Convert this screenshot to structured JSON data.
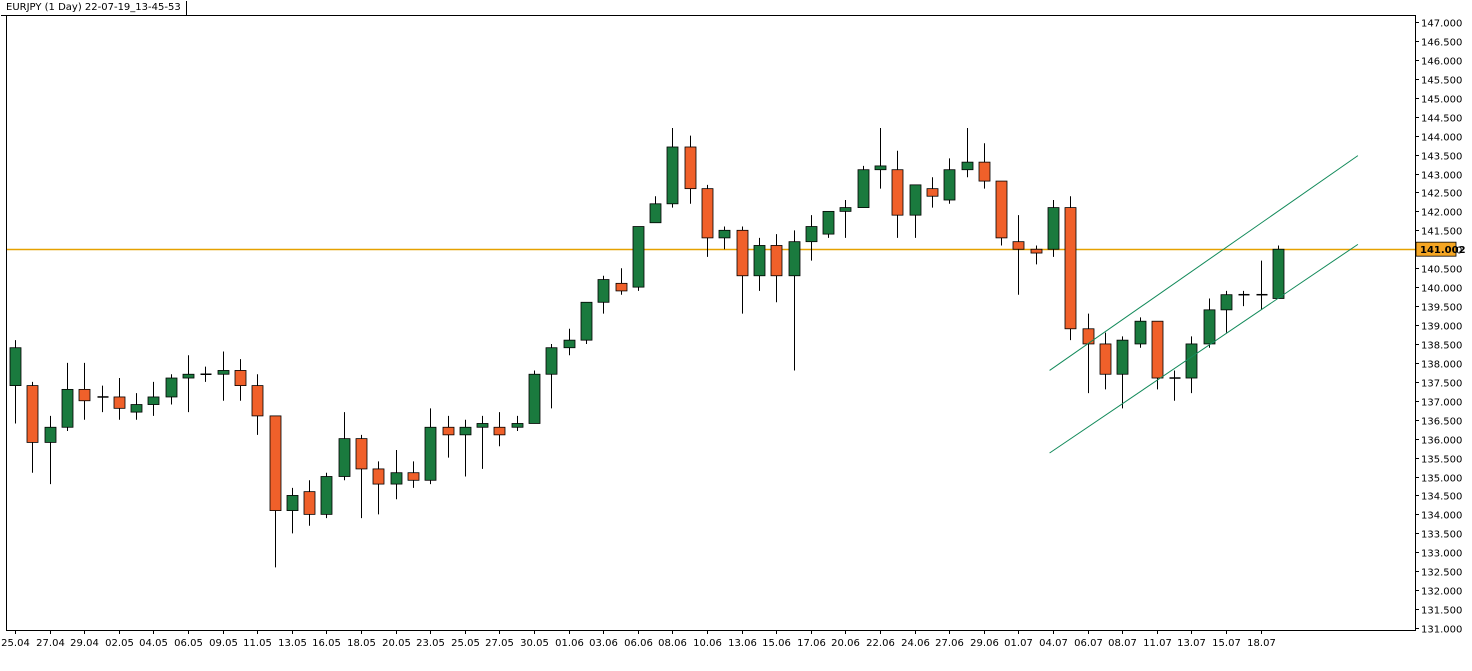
{
  "header": {
    "title": "EURJPY (1 Day) 22-07-19_13-45-53"
  },
  "colors": {
    "bull": "#1a7a3e",
    "bear": "#f0602a",
    "wick": "#000000",
    "level": "#e6a100",
    "channel": "#128a5a",
    "level_label_bg": "#f5a623"
  },
  "chart_data": {
    "type": "candlestick",
    "title": "EURJPY (1 Day) 22-07-19_13-45-53",
    "ylim": [
      131.0,
      147.0
    ],
    "y_ticks": [
      "147.000",
      "146.500",
      "146.000",
      "145.500",
      "145.000",
      "144.500",
      "144.000",
      "143.500",
      "143.000",
      "142.500",
      "142.000",
      "141.500",
      "141.000",
      "140.500",
      "140.000",
      "139.500",
      "139.000",
      "138.500",
      "138.000",
      "137.500",
      "137.000",
      "136.500",
      "136.000",
      "135.500",
      "135.000",
      "134.500",
      "134.000",
      "133.500",
      "133.000",
      "132.500",
      "132.000",
      "131.500",
      "131.000"
    ],
    "x_labels": [
      "25.04",
      "27.04",
      "29.04",
      "02.05",
      "04.05",
      "06.05",
      "09.05",
      "11.05",
      "13.05",
      "16.05",
      "18.05",
      "20.05",
      "23.05",
      "25.05",
      "27.05",
      "30.05",
      "01.06",
      "03.06",
      "06.06",
      "08.06",
      "10.06",
      "13.06",
      "15.06",
      "17.06",
      "20.06",
      "22.06",
      "24.06",
      "27.06",
      "29.06",
      "01.07",
      "04.07",
      "06.07",
      "08.07",
      "11.07",
      "13.07",
      "15.07",
      "18.07"
    ],
    "level": {
      "value": 141.002,
      "label": "141.002"
    },
    "candles": [
      {
        "d": "25.04",
        "o": 137.4,
        "h": 138.6,
        "l": 136.4,
        "c": 138.4
      },
      {
        "d": "26.04",
        "o": 137.4,
        "h": 137.5,
        "l": 135.1,
        "c": 135.9
      },
      {
        "d": "27.04",
        "o": 135.9,
        "h": 136.6,
        "l": 134.8,
        "c": 136.3
      },
      {
        "d": "28.04",
        "o": 136.3,
        "h": 138.0,
        "l": 136.2,
        "c": 137.3
      },
      {
        "d": "29.04",
        "o": 137.3,
        "h": 138.0,
        "l": 136.5,
        "c": 137.0
      },
      {
        "d": "01.05",
        "o": 137.1,
        "h": 137.4,
        "l": 136.7,
        "c": 137.1
      },
      {
        "d": "02.05",
        "o": 137.1,
        "h": 137.6,
        "l": 136.5,
        "c": 136.8
      },
      {
        "d": "03.05",
        "o": 136.7,
        "h": 137.2,
        "l": 136.5,
        "c": 136.9
      },
      {
        "d": "04.05",
        "o": 136.9,
        "h": 137.5,
        "l": 136.6,
        "c": 137.1
      },
      {
        "d": "05.05",
        "o": 137.1,
        "h": 137.7,
        "l": 136.9,
        "c": 137.6
      },
      {
        "d": "06.05",
        "o": 137.6,
        "h": 138.2,
        "l": 136.7,
        "c": 137.7
      },
      {
        "d": "08.05",
        "o": 137.7,
        "h": 137.9,
        "l": 137.5,
        "c": 137.7
      },
      {
        "d": "09.05",
        "o": 137.7,
        "h": 138.3,
        "l": 137.0,
        "c": 137.8
      },
      {
        "d": "10.05",
        "o": 137.8,
        "h": 138.1,
        "l": 137.0,
        "c": 137.4
      },
      {
        "d": "11.05",
        "o": 137.4,
        "h": 137.7,
        "l": 136.1,
        "c": 136.6
      },
      {
        "d": "12.05",
        "o": 136.6,
        "h": 136.6,
        "l": 132.6,
        "c": 134.1
      },
      {
        "d": "13.05",
        "o": 134.1,
        "h": 134.7,
        "l": 133.5,
        "c": 134.5
      },
      {
        "d": "15.05",
        "o": 134.6,
        "h": 134.9,
        "l": 133.7,
        "c": 134.0
      },
      {
        "d": "16.05",
        "o": 134.0,
        "h": 135.1,
        "l": 133.9,
        "c": 135.0
      },
      {
        "d": "17.05",
        "o": 135.0,
        "h": 136.7,
        "l": 134.9,
        "c": 136.0
      },
      {
        "d": "18.05",
        "o": 136.0,
        "h": 136.1,
        "l": 133.9,
        "c": 135.2
      },
      {
        "d": "19.05",
        "o": 135.2,
        "h": 135.4,
        "l": 134.0,
        "c": 134.8
      },
      {
        "d": "20.05",
        "o": 134.8,
        "h": 135.7,
        "l": 134.4,
        "c": 135.1
      },
      {
        "d": "22.05",
        "o": 135.1,
        "h": 135.4,
        "l": 134.7,
        "c": 134.9
      },
      {
        "d": "23.05",
        "o": 134.9,
        "h": 136.8,
        "l": 134.8,
        "c": 136.3
      },
      {
        "d": "24.05",
        "o": 136.3,
        "h": 136.6,
        "l": 135.5,
        "c": 136.1
      },
      {
        "d": "25.05",
        "o": 136.1,
        "h": 136.5,
        "l": 135.0,
        "c": 136.3
      },
      {
        "d": "26.05",
        "o": 136.3,
        "h": 136.6,
        "l": 135.2,
        "c": 136.4
      },
      {
        "d": "27.05",
        "o": 136.3,
        "h": 136.7,
        "l": 135.8,
        "c": 136.1
      },
      {
        "d": "29.05",
        "o": 136.3,
        "h": 136.6,
        "l": 136.2,
        "c": 136.4
      },
      {
        "d": "30.05",
        "o": 136.4,
        "h": 137.8,
        "l": 136.4,
        "c": 137.7
      },
      {
        "d": "31.05",
        "o": 137.7,
        "h": 138.5,
        "l": 136.8,
        "c": 138.4
      },
      {
        "d": "01.06",
        "o": 138.4,
        "h": 138.9,
        "l": 138.2,
        "c": 138.6
      },
      {
        "d": "02.06",
        "o": 138.6,
        "h": 139.6,
        "l": 138.5,
        "c": 139.6
      },
      {
        "d": "03.06",
        "o": 139.6,
        "h": 140.3,
        "l": 139.3,
        "c": 140.2
      },
      {
        "d": "05.06",
        "o": 140.1,
        "h": 140.5,
        "l": 139.8,
        "c": 139.9
      },
      {
        "d": "06.06",
        "o": 140.0,
        "h": 141.6,
        "l": 139.9,
        "c": 141.6
      },
      {
        "d": "07.06",
        "o": 141.7,
        "h": 142.4,
        "l": 141.7,
        "c": 142.2
      },
      {
        "d": "08.06",
        "o": 142.2,
        "h": 144.2,
        "l": 142.1,
        "c": 143.7
      },
      {
        "d": "09.06",
        "o": 143.7,
        "h": 144.0,
        "l": 142.2,
        "c": 142.6
      },
      {
        "d": "10.06",
        "o": 142.6,
        "h": 142.7,
        "l": 140.8,
        "c": 141.3
      },
      {
        "d": "12.06",
        "o": 141.3,
        "h": 141.6,
        "l": 141.0,
        "c": 141.5
      },
      {
        "d": "13.06",
        "o": 141.5,
        "h": 141.6,
        "l": 139.3,
        "c": 140.3
      },
      {
        "d": "14.06",
        "o": 140.3,
        "h": 141.3,
        "l": 139.9,
        "c": 141.1
      },
      {
        "d": "15.06",
        "o": 141.1,
        "h": 141.4,
        "l": 139.6,
        "c": 140.3
      },
      {
        "d": "16.06",
        "o": 140.3,
        "h": 141.5,
        "l": 137.8,
        "c": 141.2
      },
      {
        "d": "17.06",
        "o": 141.2,
        "h": 141.9,
        "l": 140.7,
        "c": 141.6
      },
      {
        "d": "19.06",
        "o": 141.4,
        "h": 142.0,
        "l": 141.3,
        "c": 142.0
      },
      {
        "d": "20.06",
        "o": 142.0,
        "h": 142.3,
        "l": 141.3,
        "c": 142.1
      },
      {
        "d": "21.06",
        "o": 142.1,
        "h": 143.2,
        "l": 142.1,
        "c": 143.1
      },
      {
        "d": "22.06",
        "o": 143.1,
        "h": 144.2,
        "l": 142.6,
        "c": 143.2
      },
      {
        "d": "23.06",
        "o": 143.1,
        "h": 143.6,
        "l": 141.3,
        "c": 141.9
      },
      {
        "d": "24.06",
        "o": 141.9,
        "h": 142.7,
        "l": 141.3,
        "c": 142.7
      },
      {
        "d": "26.06",
        "o": 142.6,
        "h": 142.9,
        "l": 142.1,
        "c": 142.4
      },
      {
        "d": "27.06",
        "o": 142.3,
        "h": 143.4,
        "l": 142.2,
        "c": 143.1
      },
      {
        "d": "28.06",
        "o": 143.1,
        "h": 144.2,
        "l": 142.9,
        "c": 143.3
      },
      {
        "d": "29.06",
        "o": 143.3,
        "h": 143.8,
        "l": 142.6,
        "c": 142.8
      },
      {
        "d": "30.06",
        "o": 142.8,
        "h": 142.8,
        "l": 141.1,
        "c": 141.3
      },
      {
        "d": "01.07",
        "o": 141.2,
        "h": 141.9,
        "l": 139.8,
        "c": 141.0
      },
      {
        "d": "03.07",
        "o": 141.0,
        "h": 141.1,
        "l": 140.6,
        "c": 140.9
      },
      {
        "d": "04.07",
        "o": 141.0,
        "h": 142.3,
        "l": 140.8,
        "c": 142.1
      },
      {
        "d": "05.07",
        "o": 142.1,
        "h": 142.4,
        "l": 138.6,
        "c": 138.9
      },
      {
        "d": "06.07",
        "o": 138.9,
        "h": 139.3,
        "l": 137.2,
        "c": 138.5
      },
      {
        "d": "07.07",
        "o": 138.5,
        "h": 138.8,
        "l": 137.3,
        "c": 137.7
      },
      {
        "d": "08.07",
        "o": 137.7,
        "h": 138.7,
        "l": 136.8,
        "c": 138.6
      },
      {
        "d": "10.07",
        "o": 138.5,
        "h": 139.2,
        "l": 138.4,
        "c": 139.1
      },
      {
        "d": "11.07",
        "o": 139.1,
        "h": 139.1,
        "l": 137.3,
        "c": 137.6
      },
      {
        "d": "12.07",
        "o": 137.6,
        "h": 137.8,
        "l": 137.0,
        "c": 137.6
      },
      {
        "d": "13.07",
        "o": 137.6,
        "h": 138.7,
        "l": 137.2,
        "c": 138.5
      },
      {
        "d": "14.07",
        "o": 138.5,
        "h": 139.7,
        "l": 138.4,
        "c": 139.4
      },
      {
        "d": "15.07",
        "o": 139.4,
        "h": 139.9,
        "l": 138.8,
        "c": 139.8
      },
      {
        "d": "17.07",
        "o": 139.8,
        "h": 139.9,
        "l": 139.5,
        "c": 139.8
      },
      {
        "d": "18.07",
        "o": 139.8,
        "h": 140.7,
        "l": 139.4,
        "c": 139.8
      },
      {
        "d": "19.07",
        "o": 139.7,
        "h": 141.1,
        "l": 139.7,
        "c": 141.0
      }
    ],
    "channel_lines": [
      {
        "from": {
          "d": "06.07",
          "v": 138.5
        },
        "to": {
          "d": "19.07",
          "v": 142.0
        }
      },
      {
        "from": {
          "d": "06.07",
          "v": 136.3
        },
        "to": {
          "d": "19.07",
          "v": 139.7
        }
      }
    ]
  }
}
